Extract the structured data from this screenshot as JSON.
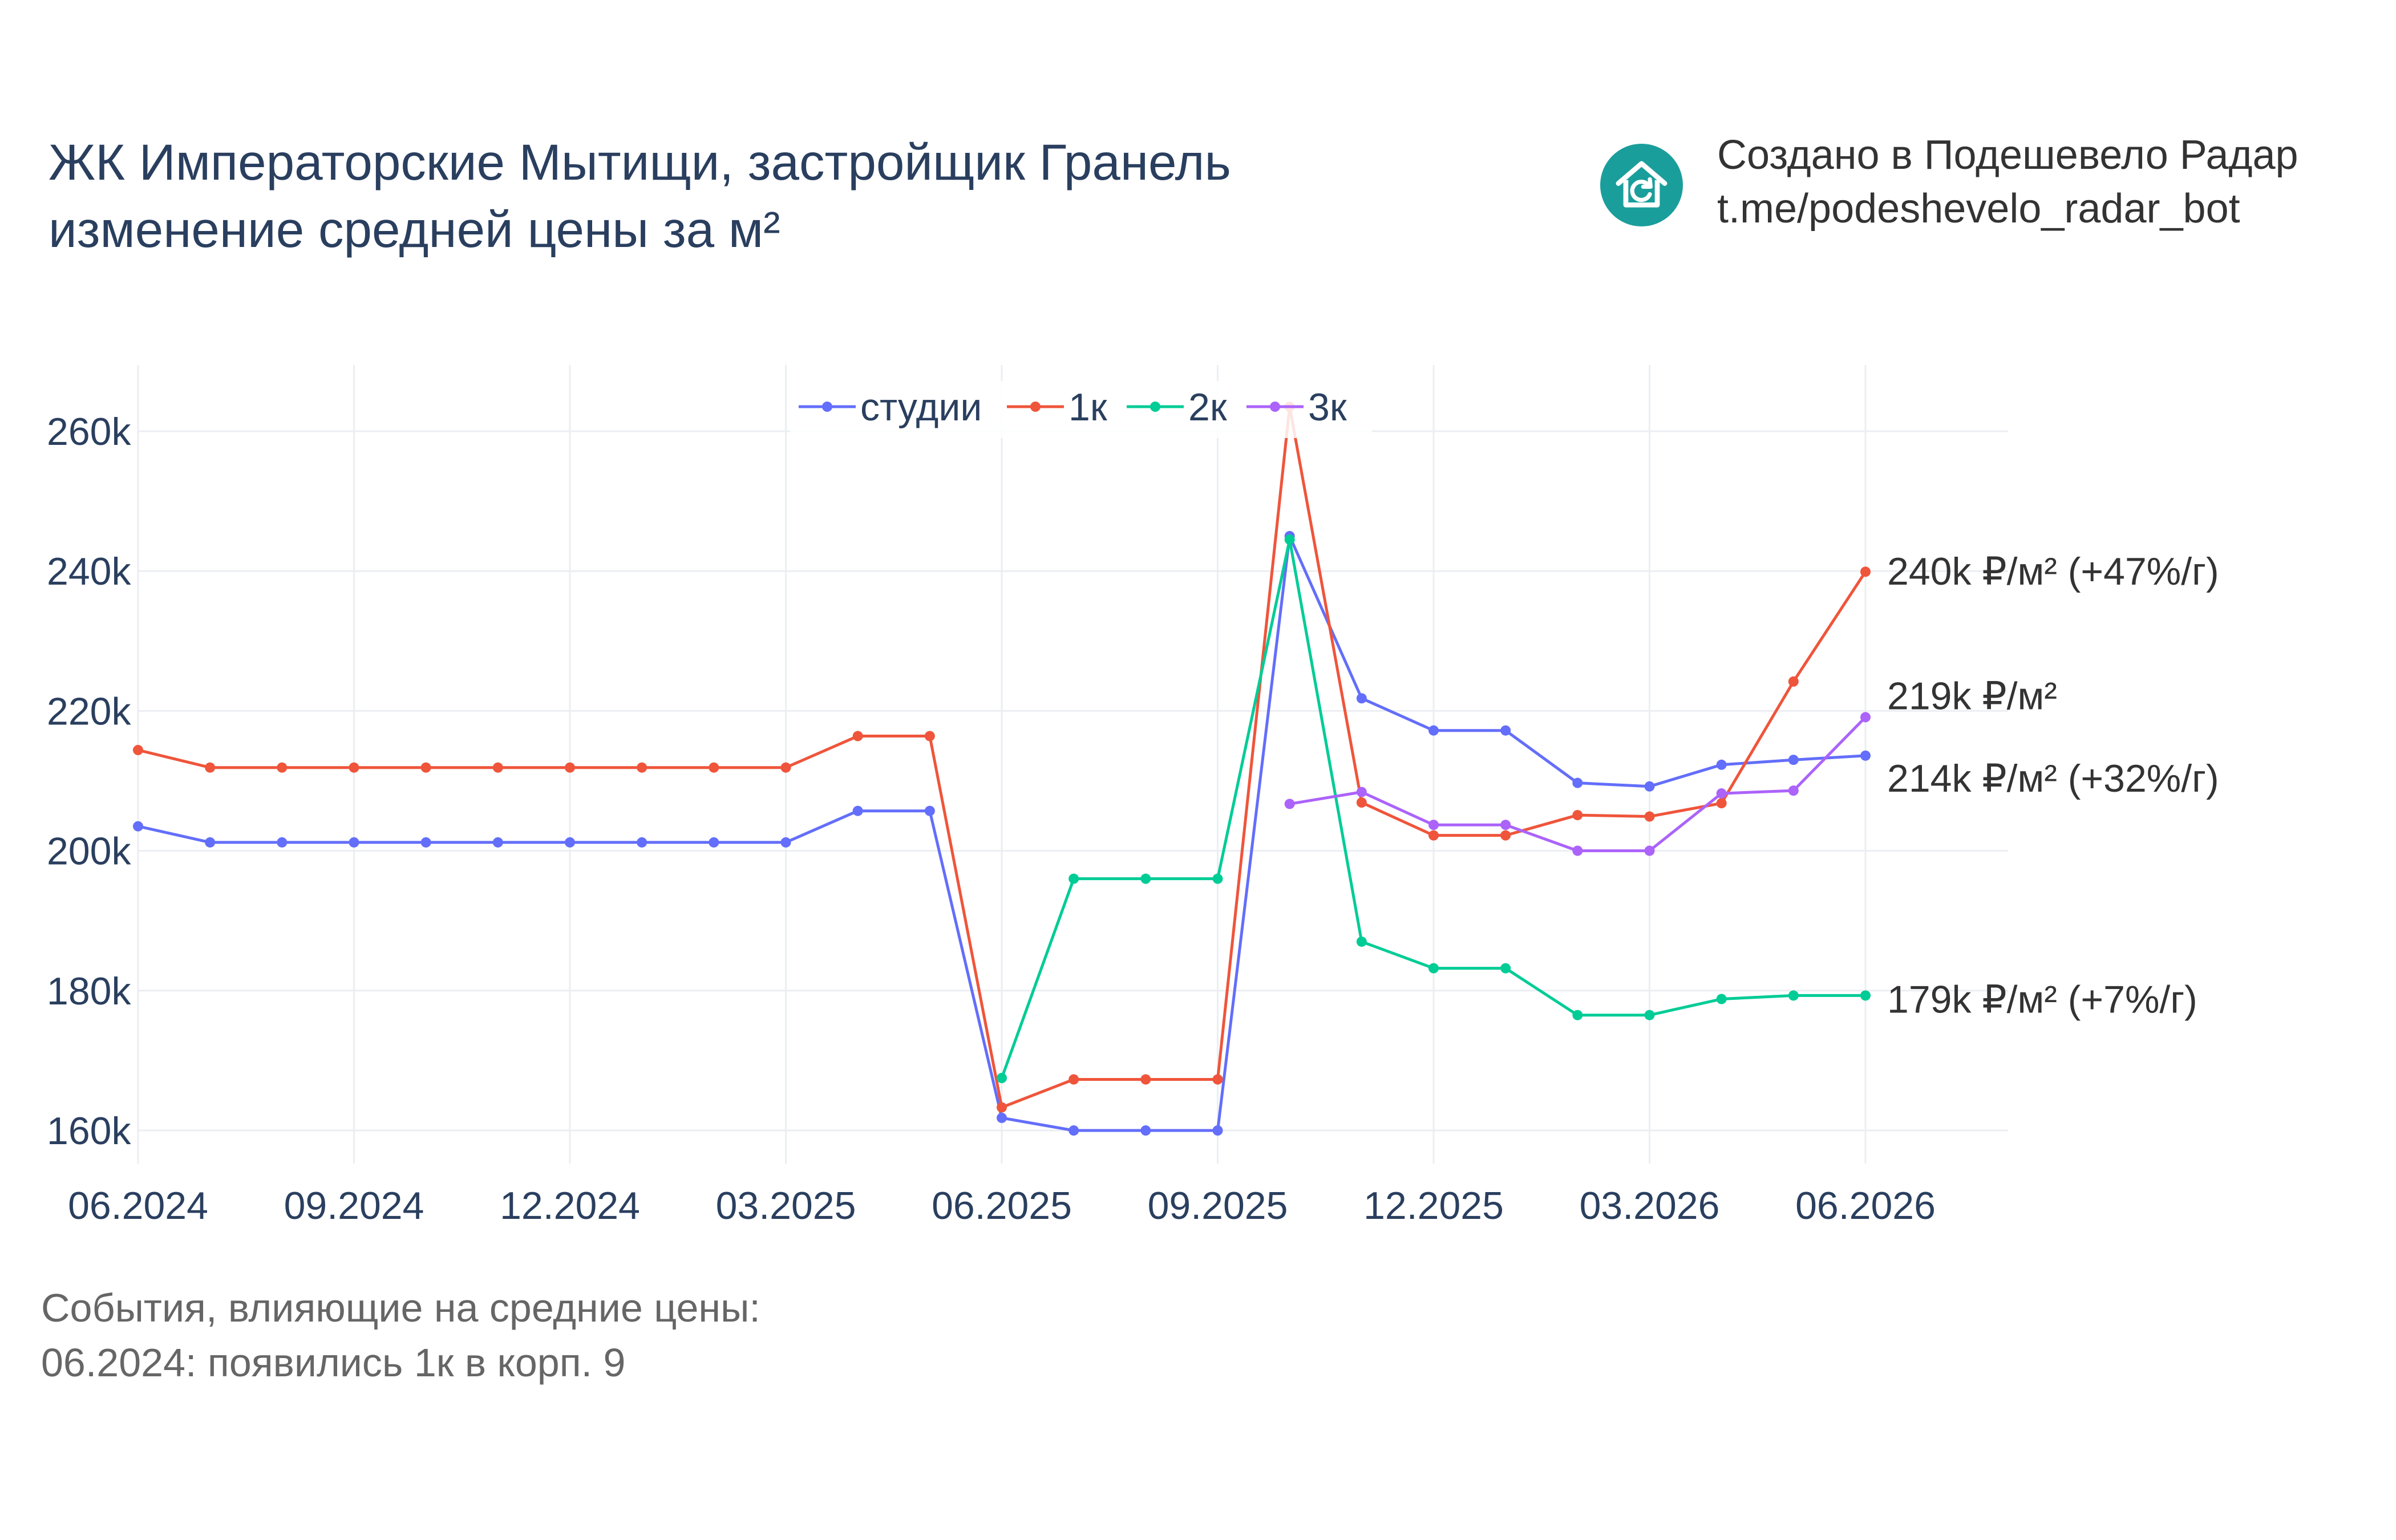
{
  "title": {
    "line1": "ЖК Императорские Мытищи, застройщик Гранель",
    "line2": "изменение средней цены за м²"
  },
  "brand": {
    "icon": "house-refresh-icon",
    "color": "#1a9e9c",
    "line1": "Создано в Подешевело Радар",
    "line2": "t.me/podeshevelo_radar_bot"
  },
  "events": {
    "heading": "События, влияющие на средние цены:",
    "items": [
      "06.2024: появились 1к в корп. 9"
    ]
  },
  "chart_data": {
    "type": "line",
    "x": [
      "06.2024",
      "07.2024",
      "08.2024",
      "09.2024",
      "10.2024",
      "11.2024",
      "12.2024",
      "01.2025",
      "02.2025",
      "03.2025",
      "04.2025",
      "05.2025",
      "06.2025",
      "07.2025",
      "08.2025",
      "09.2025",
      "10.2025",
      "11.2025",
      "12.2025",
      "01.2026",
      "02.2026",
      "03.2026",
      "04.2026",
      "05.2026",
      "06.2026"
    ],
    "x_tick_labels": [
      "06.2024",
      "09.2024",
      "12.2024",
      "03.2025",
      "06.2025",
      "09.2025",
      "12.2025",
      "03.2026",
      "06.2026"
    ],
    "y_tick_labels": [
      "160k",
      "180k",
      "200k",
      "220k",
      "240k",
      "260k"
    ],
    "y_ticks": [
      160000,
      180000,
      200000,
      220000,
      240000,
      260000
    ],
    "ylim": [
      155000,
      270000
    ],
    "grid": true,
    "legend_position": "top-center",
    "series": [
      {
        "name": "студии",
        "color": "#636efa",
        "values": [
          203500,
          201200,
          201200,
          201200,
          201200,
          201200,
          201200,
          201200,
          201200,
          201200,
          205700,
          205700,
          161800,
          160000,
          160000,
          160000,
          245000,
          221800,
          217200,
          217200,
          209700,
          209200,
          212300,
          213000,
          213600
        ]
      },
      {
        "name": "1к",
        "color": "#ef553b",
        "values": [
          214400,
          211900,
          211900,
          211900,
          211900,
          211900,
          211900,
          211900,
          211900,
          211900,
          216400,
          216400,
          163300,
          167300,
          167300,
          167300,
          263500,
          206900,
          202200,
          202200,
          205100,
          204900,
          206800,
          224200,
          239900
        ]
      },
      {
        "name": "2к",
        "color": "#00cc96",
        "values": [
          null,
          null,
          null,
          null,
          null,
          null,
          null,
          null,
          null,
          null,
          null,
          null,
          167500,
          196000,
          196000,
          196000,
          244500,
          187000,
          183200,
          183200,
          176500,
          176500,
          178800,
          179300,
          179300
        ]
      },
      {
        "name": "3к",
        "color": "#ab63fa",
        "values": [
          null,
          null,
          null,
          null,
          null,
          null,
          null,
          null,
          null,
          null,
          null,
          null,
          null,
          null,
          null,
          null,
          206700,
          208400,
          203700,
          203700,
          200000,
          200000,
          208200,
          208600,
          219100
        ]
      }
    ],
    "end_labels": [
      {
        "text": "240k ₽/м² (+47%/г)",
        "value": 240000
      },
      {
        "text": "219k ₽/м²",
        "value": 222200
      },
      {
        "text": "214k ₽/м² (+32%/г)",
        "value": 210400
      },
      {
        "text": "179k ₽/м² (+7%/г)",
        "value": 178800
      }
    ]
  }
}
